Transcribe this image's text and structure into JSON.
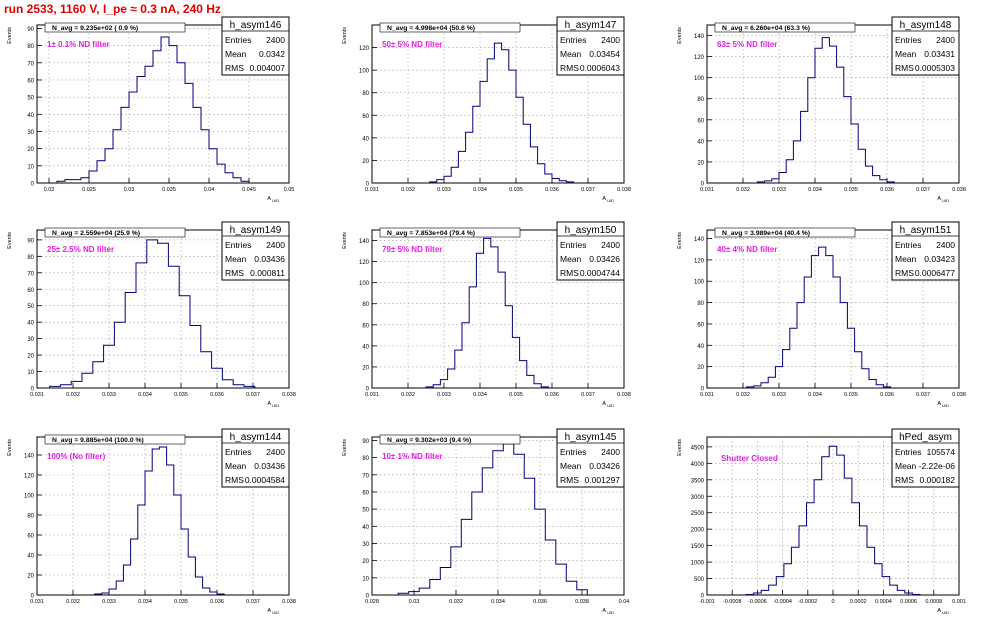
{
  "page_title": "run 2533,  1160 V, I_pe ≈ 0.3 nA, 240 Hz",
  "chart_data": [
    {
      "type": "histogram",
      "title": "h_asym146",
      "stats": {
        "Entries": "2400",
        "Mean": "0.0342",
        "RMS": "0.004007"
      },
      "navg": "N_avg = 9.235e+02 ( 0.9 %)",
      "filter": "1± 0.1% ND filter",
      "xlabel": "A_UID",
      "ylabel": "Events",
      "xlim": [
        0.0185,
        0.05
      ],
      "ylim": [
        0,
        92
      ],
      "xticks": [
        0.02,
        0.025,
        0.03,
        0.035,
        0.04,
        0.045,
        0.05
      ],
      "xtick_labels": [
        "0.02",
        "0.025",
        "0.03",
        "0.035",
        "0.04",
        "0.045",
        "0.05"
      ],
      "yticks": [
        0,
        10,
        20,
        30,
        40,
        50,
        60,
        70,
        80,
        90
      ],
      "ytick_labels": [
        "0",
        "10",
        "20",
        "30",
        "40",
        "50",
        "60",
        "70",
        "80",
        "90"
      ],
      "x": [
        0.0215,
        0.0225,
        0.0235,
        0.0245,
        0.0255,
        0.0265,
        0.0275,
        0.0285,
        0.0295,
        0.0305,
        0.0315,
        0.0325,
        0.0335,
        0.0345,
        0.0355,
        0.0365,
        0.0375,
        0.0385,
        0.0395,
        0.0405,
        0.0415,
        0.0425,
        0.0435,
        0.0445
      ],
      "values": [
        1,
        2,
        2,
        3,
        7,
        13,
        20,
        31,
        44,
        53,
        62,
        68,
        77,
        85,
        80,
        70,
        58,
        44,
        31,
        20,
        11,
        6,
        3,
        1
      ]
    },
    {
      "type": "histogram",
      "title": "h_asym147",
      "stats": {
        "Entries": "2400",
        "Mean": "0.03454",
        "RMS": "0.0006043"
      },
      "navg": "N_avg = 4.998e+04 (50.6 %)",
      "filter": "50± 5% ND filter",
      "xlabel": "A_UID",
      "ylabel": "Events",
      "xlim": [
        0.031,
        0.038
      ],
      "ylim": [
        0,
        140
      ],
      "xticks": [
        0.031,
        0.032,
        0.033,
        0.034,
        0.035,
        0.036,
        0.037,
        0.038
      ],
      "xtick_labels": [
        "0.031",
        "0.032",
        "0.033",
        "0.034",
        "0.035",
        "0.036",
        "0.037",
        "0.038"
      ],
      "yticks": [
        0,
        20,
        40,
        60,
        80,
        100,
        120
      ],
      "ytick_labels": [
        "0",
        "20",
        "40",
        "60",
        "80",
        "100",
        "120"
      ],
      "x": [
        0.0327,
        0.0329,
        0.0331,
        0.0333,
        0.0335,
        0.0337,
        0.0339,
        0.0341,
        0.0343,
        0.0345,
        0.0347,
        0.0349,
        0.0351,
        0.0353,
        0.0355,
        0.0357,
        0.0359,
        0.0361,
        0.0363,
        0.0365
      ],
      "values": [
        1,
        3,
        6,
        14,
        28,
        45,
        68,
        90,
        110,
        124,
        118,
        100,
        76,
        52,
        32,
        17,
        8,
        4,
        2,
        1
      ]
    },
    {
      "type": "histogram",
      "title": "h_asym148",
      "stats": {
        "Entries": "2400",
        "Mean": "0.03431",
        "RMS": "0.0005303"
      },
      "navg": "N_avg = 6.260e+04 (63.3 %)",
      "filter": "63± 5% ND filter",
      "xlabel": "A_UID",
      "ylabel": "Events",
      "xlim": [
        0.031,
        0.038
      ],
      "ylim": [
        0,
        150
      ],
      "xticks": [
        0.031,
        0.032,
        0.033,
        0.034,
        0.035,
        0.036,
        0.037,
        0.038
      ],
      "xtick_labels": [
        "0.031",
        "0.032",
        "0.033",
        "0.034",
        "0.035",
        "0.036",
        "0.037",
        "0.038"
      ],
      "yticks": [
        0,
        20,
        40,
        60,
        80,
        100,
        120,
        140
      ],
      "ytick_labels": [
        "0",
        "20",
        "40",
        "60",
        "80",
        "100",
        "120",
        "140"
      ],
      "x": [
        0.0325,
        0.0327,
        0.0329,
        0.0331,
        0.0333,
        0.0335,
        0.0337,
        0.0339,
        0.0341,
        0.0343,
        0.0345,
        0.0347,
        0.0349,
        0.0351,
        0.0353,
        0.0355,
        0.0357,
        0.0359,
        0.0361
      ],
      "values": [
        1,
        2,
        4,
        10,
        22,
        40,
        68,
        100,
        128,
        138,
        130,
        110,
        82,
        56,
        32,
        16,
        7,
        3,
        1
      ]
    },
    {
      "type": "histogram",
      "title": "h_asym149",
      "stats": {
        "Entries": "2400",
        "Mean": "0.03436",
        "RMS": "0.000811"
      },
      "navg": "N_avg = 2.559e+04 (25.9 %)",
      "filter": "25± 2.5% ND filter",
      "xlabel": "A_UID",
      "ylabel": "Events",
      "xlim": [
        0.031,
        0.038
      ],
      "ylim": [
        0,
        96
      ],
      "xticks": [
        0.031,
        0.032,
        0.033,
        0.034,
        0.035,
        0.036,
        0.037,
        0.038
      ],
      "xtick_labels": [
        "0.031",
        "0.032",
        "0.033",
        "0.034",
        "0.035",
        "0.036",
        "0.037",
        "0.038"
      ],
      "yticks": [
        0,
        10,
        20,
        30,
        40,
        50,
        60,
        70,
        80,
        90
      ],
      "ytick_labels": [
        "0",
        "10",
        "20",
        "30",
        "40",
        "50",
        "60",
        "70",
        "80",
        "90"
      ],
      "x": [
        0.0315,
        0.0318,
        0.0321,
        0.0324,
        0.0327,
        0.033,
        0.0333,
        0.0336,
        0.0339,
        0.0342,
        0.0345,
        0.0348,
        0.0351,
        0.0354,
        0.0357,
        0.036,
        0.0363,
        0.0366,
        0.0369
      ],
      "values": [
        1,
        2,
        4,
        9,
        16,
        26,
        40,
        58,
        76,
        90,
        88,
        74,
        56,
        38,
        22,
        12,
        5,
        2,
        1
      ]
    },
    {
      "type": "histogram",
      "title": "h_asym150",
      "stats": {
        "Entries": "2400",
        "Mean": "0.03426",
        "RMS": "0.0004744"
      },
      "navg": "N_avg = 7.853e+04 (79.4 %)",
      "filter": "79± 5% ND filter",
      "xlabel": "A_UID",
      "ylabel": "Events",
      "xlim": [
        0.031,
        0.038
      ],
      "ylim": [
        0,
        150
      ],
      "xticks": [
        0.031,
        0.032,
        0.033,
        0.034,
        0.035,
        0.036,
        0.037,
        0.038
      ],
      "xtick_labels": [
        "0.031",
        "0.032",
        "0.033",
        "0.034",
        "0.035",
        "0.036",
        "0.037",
        "0.038"
      ],
      "yticks": [
        0,
        20,
        40,
        60,
        80,
        100,
        120,
        140
      ],
      "ytick_labels": [
        "0",
        "20",
        "40",
        "60",
        "80",
        "100",
        "120",
        "140"
      ],
      "x": [
        0.0326,
        0.0328,
        0.033,
        0.0332,
        0.0334,
        0.0336,
        0.0338,
        0.034,
        0.0342,
        0.0344,
        0.0346,
        0.0348,
        0.035,
        0.0352,
        0.0354,
        0.0356,
        0.0358
      ],
      "values": [
        1,
        3,
        8,
        18,
        36,
        62,
        96,
        128,
        142,
        134,
        110,
        78,
        48,
        26,
        12,
        4,
        1
      ]
    },
    {
      "type": "histogram",
      "title": "h_asym151",
      "stats": {
        "Entries": "2400",
        "Mean": "0.03423",
        "RMS": "0.0006477"
      },
      "navg": "N_avg = 3.989e+04 (40.4 %)",
      "filter": "40± 4% ND filter",
      "xlabel": "A_UID",
      "ylabel": "Events",
      "xlim": [
        0.031,
        0.038
      ],
      "ylim": [
        0,
        148
      ],
      "xticks": [
        0.031,
        0.032,
        0.033,
        0.034,
        0.035,
        0.036,
        0.037,
        0.038
      ],
      "xtick_labels": [
        "0.031",
        "0.032",
        "0.033",
        "0.034",
        "0.035",
        "0.036",
        "0.037",
        "0.038"
      ],
      "yticks": [
        0,
        20,
        40,
        60,
        80,
        100,
        120,
        140
      ],
      "ytick_labels": [
        "0",
        "20",
        "40",
        "60",
        "80",
        "100",
        "120",
        "140"
      ],
      "x": [
        0.0322,
        0.0324,
        0.0326,
        0.0328,
        0.033,
        0.0332,
        0.0334,
        0.0336,
        0.0338,
        0.034,
        0.0342,
        0.0344,
        0.0346,
        0.0348,
        0.035,
        0.0352,
        0.0354,
        0.0356,
        0.0358,
        0.036
      ],
      "values": [
        1,
        2,
        5,
        10,
        20,
        36,
        56,
        80,
        104,
        124,
        132,
        124,
        104,
        80,
        56,
        34,
        18,
        8,
        3,
        1
      ]
    },
    {
      "type": "histogram",
      "title": "h_asym144",
      "stats": {
        "Entries": "2400",
        "Mean": "0.03436",
        "RMS": "0.0004584"
      },
      "navg": "N_avg = 9.885e+04 (100.0 %)",
      "filter": "100% (No filter)",
      "xlabel": "A_UID",
      "ylabel": "Events",
      "xlim": [
        0.031,
        0.038
      ],
      "ylim": [
        0,
        158
      ],
      "xticks": [
        0.031,
        0.032,
        0.033,
        0.034,
        0.035,
        0.036,
        0.037,
        0.038
      ],
      "xtick_labels": [
        "0.031",
        "0.032",
        "0.033",
        "0.034",
        "0.035",
        "0.036",
        "0.037",
        "0.038"
      ],
      "yticks": [
        0,
        20,
        40,
        60,
        80,
        100,
        120,
        140
      ],
      "ytick_labels": [
        "0",
        "20",
        "40",
        "60",
        "80",
        "100",
        "120",
        "140"
      ],
      "x": [
        0.0327,
        0.0329,
        0.0331,
        0.0333,
        0.0335,
        0.0337,
        0.0339,
        0.0341,
        0.0343,
        0.0345,
        0.0347,
        0.0349,
        0.0351,
        0.0353,
        0.0355,
        0.0357,
        0.0359,
        0.0361
      ],
      "values": [
        1,
        2,
        6,
        14,
        30,
        56,
        90,
        124,
        146,
        148,
        130,
        100,
        66,
        38,
        18,
        7,
        3,
        1
      ]
    },
    {
      "type": "histogram",
      "title": "h_asym145",
      "stats": {
        "Entries": "2400",
        "Mean": "0.03426",
        "RMS": "0.001297"
      },
      "navg": "N_avg = 9.302e+03 (9.4 %)",
      "filter": "10± 1% ND filter",
      "xlabel": "A_UID",
      "ylabel": "Events",
      "xlim": [
        0.028,
        0.04
      ],
      "ylim": [
        0,
        92
      ],
      "xticks": [
        0.028,
        0.03,
        0.032,
        0.034,
        0.036,
        0.038,
        0.04
      ],
      "xtick_labels": [
        "0.028",
        "0.03",
        "0.032",
        "0.034",
        "0.036",
        "0.038",
        "0.04"
      ],
      "yticks": [
        0,
        10,
        20,
        30,
        40,
        50,
        60,
        70,
        80,
        90
      ],
      "ytick_labels": [
        "0",
        "10",
        "20",
        "30",
        "40",
        "50",
        "60",
        "70",
        "80",
        "90"
      ],
      "x": [
        0.0295,
        0.03,
        0.0305,
        0.031,
        0.0315,
        0.032,
        0.0325,
        0.033,
        0.0335,
        0.034,
        0.0345,
        0.035,
        0.0355,
        0.036,
        0.0365,
        0.037,
        0.0375,
        0.038
      ],
      "values": [
        1,
        2,
        4,
        9,
        16,
        28,
        44,
        60,
        74,
        84,
        88,
        82,
        68,
        50,
        32,
        18,
        8,
        3
      ]
    },
    {
      "type": "histogram",
      "title": "hPed_asym",
      "stats": {
        "Entries": "105574",
        "Mean": "-2.22e-06",
        "RMS": "0.000182"
      },
      "navg": "",
      "filter": "Shutter Closed",
      "xlabel": "A_UID",
      "ylabel": "Events",
      "xlim": [
        -0.001,
        0.001
      ],
      "ylim": [
        0,
        4800
      ],
      "xticks": [
        -0.001,
        -0.0008,
        -0.0006,
        -0.0004,
        -0.0002,
        0,
        0.0002,
        0.0004,
        0.0006,
        0.0008,
        0.001
      ],
      "xtick_labels": [
        "-0.001",
        "-0.0008",
        "-0.0006",
        "-0.0004",
        "-0.0002",
        "0",
        "0.0002",
        "0.0004",
        "0.0006",
        "0.0008",
        "0.001"
      ],
      "yticks": [
        0,
        500,
        1000,
        1500,
        2000,
        2500,
        3000,
        3500,
        4000,
        4500
      ],
      "ytick_labels": [
        "0",
        "500",
        "1000",
        "1500",
        "2000",
        "2500",
        "3000",
        "3500",
        "4000",
        "4500"
      ],
      "x": [
        -0.00066,
        -0.0006,
        -0.00054,
        -0.00048,
        -0.00042,
        -0.00036,
        -0.0003,
        -0.00024,
        -0.00018,
        -0.00012,
        -6e-05,
        0,
        6e-05,
        0.00012,
        0.00018,
        0.00024,
        0.0003,
        0.00036,
        0.00042,
        0.00048,
        0.00054,
        0.0006,
        0.00066
      ],
      "values": [
        15,
        60,
        140,
        300,
        560,
        950,
        1450,
        2100,
        2800,
        3500,
        4200,
        4520,
        4250,
        3550,
        2800,
        2100,
        1450,
        950,
        560,
        300,
        140,
        60,
        15
      ]
    }
  ]
}
